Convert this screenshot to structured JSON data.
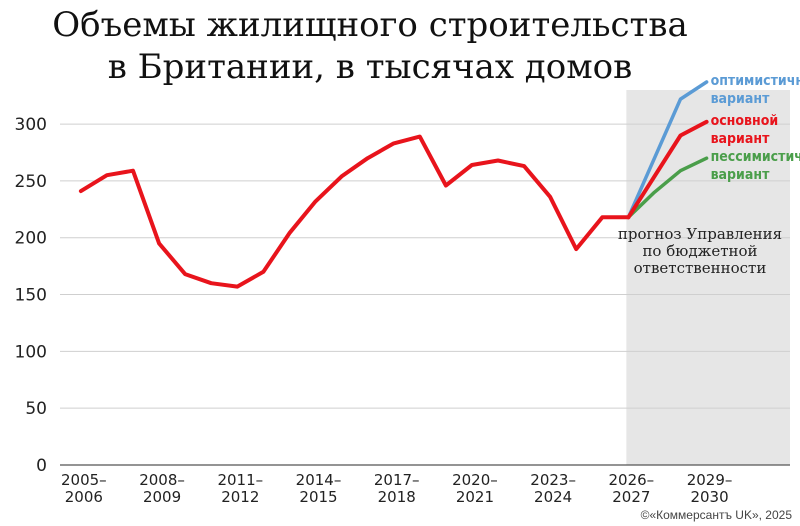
{
  "chart_data": {
    "type": "line",
    "title_lines": [
      "Объемы жилищного строительства",
      "в Британии, в тысячах домов"
    ],
    "ylim": [
      0,
      330
    ],
    "yticks": [
      0,
      50,
      100,
      150,
      200,
      250,
      300
    ],
    "x_ticks": [
      {
        "top": "2005–",
        "bottom": "2006",
        "x": 2005
      },
      {
        "top": "2008–",
        "bottom": "2009",
        "x": 2008
      },
      {
        "top": "2011–",
        "bottom": "2012",
        "x": 2011
      },
      {
        "top": "2014–",
        "bottom": "2015",
        "x": 2014
      },
      {
        "top": "2017–",
        "bottom": "2018",
        "x": 2017
      },
      {
        "top": "2020–",
        "bottom": "2021",
        "x": 2020
      },
      {
        "top": "2023–",
        "bottom": "2024",
        "x": 2023
      },
      {
        "top": "2026–",
        "bottom": "2027",
        "x": 2026
      },
      {
        "top": "2029–",
        "bottom": "2030",
        "x": 2029
      }
    ],
    "xlim": [
      2004.2,
      2032.2
    ],
    "grid": true,
    "forecast_region_start": 2026,
    "forecast_note": [
      "прогноз Управления",
      "по бюджетной",
      "ответственности"
    ],
    "series": [
      {
        "id": "actual",
        "color": "#e8141c",
        "x": [
          2005,
          2006,
          2007,
          2008,
          2009,
          2010,
          2011,
          2012,
          2013,
          2014,
          2015,
          2016,
          2017,
          2018,
          2019,
          2020,
          2021,
          2022,
          2023,
          2024,
          2025,
          2026
        ],
        "values": [
          241,
          255,
          259,
          195,
          168,
          160,
          157,
          170,
          204,
          232,
          254,
          270,
          283,
          289,
          246,
          264,
          268,
          263,
          236,
          190,
          218,
          218
        ]
      },
      {
        "id": "optimistic",
        "name": [
          "оптимистичный",
          "вариант"
        ],
        "color": "#5b9bd5",
        "x": [
          2026,
          2028,
          2029
        ],
        "values": [
          218,
          322,
          337
        ]
      },
      {
        "id": "base",
        "name": [
          "основной",
          "вариант"
        ],
        "color": "#e8141c",
        "x": [
          2026,
          2028,
          2029
        ],
        "values": [
          218,
          290,
          302
        ]
      },
      {
        "id": "pessimistic",
        "name": [
          "пессимистичный",
          "вариант"
        ],
        "color": "#4a9e4a",
        "x": [
          2026,
          2027,
          2028,
          2029
        ],
        "values": [
          218,
          240,
          259,
          270
        ]
      }
    ]
  },
  "credit": "©«Коммерсантъ UK», 2025"
}
